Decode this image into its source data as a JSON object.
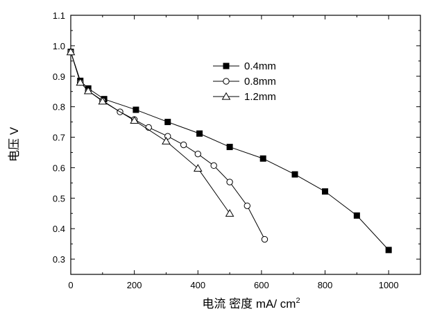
{
  "chart_data": {
    "type": "line",
    "title": "",
    "xlabel": "电流 密度 mA/ cm",
    "xlabel_superscript": "2",
    "ylabel": "电压 V",
    "xlim": [
      0,
      1100
    ],
    "ylim": [
      0.25,
      1.1
    ],
    "x_ticks": [
      "0",
      "200",
      "400",
      "600",
      "800",
      "1000"
    ],
    "y_ticks": [
      "0.3",
      "0.4",
      "0.5",
      "0.6",
      "0.7",
      "0.8",
      "0.9",
      "1.0",
      "1.1"
    ],
    "grid": false,
    "legend_position": "top-center",
    "series": [
      {
        "name": "0.4mm",
        "marker": "filled-square",
        "x": [
          0,
          30,
          55,
          105,
          205,
          305,
          405,
          500,
          605,
          705,
          800,
          900,
          1000
        ],
        "y": [
          0.98,
          0.885,
          0.86,
          0.825,
          0.79,
          0.75,
          0.712,
          0.668,
          0.63,
          0.578,
          0.522,
          0.443,
          0.33
        ]
      },
      {
        "name": "0.8mm",
        "marker": "open-circle",
        "x": [
          0,
          30,
          55,
          100,
          155,
          200,
          245,
          305,
          355,
          400,
          450,
          500,
          555,
          610
        ],
        "y": [
          0.98,
          0.88,
          0.852,
          0.82,
          0.783,
          0.758,
          0.732,
          0.703,
          0.675,
          0.645,
          0.607,
          0.553,
          0.475,
          0.365
        ]
      },
      {
        "name": "1.2mm",
        "marker": "open-triangle",
        "x": [
          0,
          30,
          55,
          100,
          200,
          300,
          400,
          500
        ],
        "y": [
          0.98,
          0.88,
          0.852,
          0.818,
          0.755,
          0.687,
          0.598,
          0.45
        ]
      }
    ]
  }
}
